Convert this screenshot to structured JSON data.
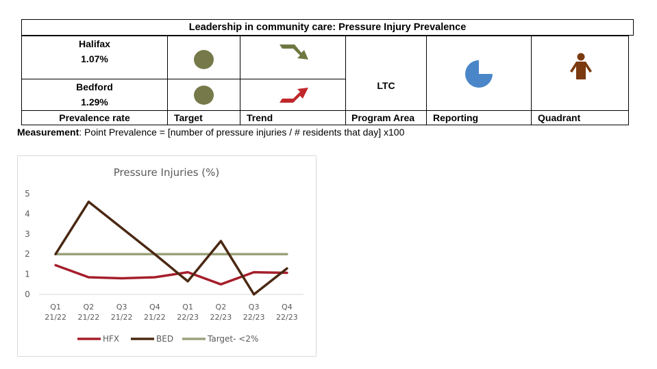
{
  "table": {
    "title": "Leadership in community care: Pressure Injury Prevalence",
    "sites": [
      {
        "name": "Halifax",
        "rate": "1.07%",
        "target_color": "#76794a",
        "trend": "down",
        "trend_color": "#6f7741"
      },
      {
        "name": "Bedford",
        "rate": "1.29%",
        "target_color": "#76794a",
        "trend": "up",
        "trend_color": "#c0282b"
      }
    ],
    "program_area_value": "LTC",
    "reporting_icon": "pie-three-quarter-icon",
    "reporting_color": "#4a86c8",
    "reporting_fraction": 0.75,
    "quadrant_icon": "person-icon",
    "quadrant_color": "#7b3a10",
    "headers": {
      "prevalence": "Prevalence rate",
      "target": "Target",
      "trend": "Trend",
      "program": "Program Area",
      "reporting": "Reporting",
      "quadrant": "Quadrant"
    }
  },
  "measurement": {
    "label": "Measurement",
    "text": ": Point Prevalence = [number of pressure injuries / # residents that day] x100"
  },
  "chart_data": {
    "type": "line",
    "title": "Pressure Injuries (%)",
    "categories": [
      "Q1 21/22",
      "Q2 21/22",
      "Q3 21/22",
      "Q4 21/22",
      "Q1 22/23",
      "Q2 22/23",
      "Q3 22/23",
      "Q4 22/23"
    ],
    "category_lines": [
      [
        "Q1",
        "21/22"
      ],
      [
        "Q2",
        "21/22"
      ],
      [
        "Q3",
        "21/22"
      ],
      [
        "Q4",
        "21/22"
      ],
      [
        "Q1",
        "22/23"
      ],
      [
        "Q2",
        "22/23"
      ],
      [
        "Q3",
        "22/23"
      ],
      [
        "Q4",
        "22/23"
      ]
    ],
    "yticks": [
      "0",
      "1",
      "2",
      "3",
      "4",
      "5"
    ],
    "ylim": [
      0,
      5
    ],
    "series": [
      {
        "name": "HFX",
        "color": "#a51e2b",
        "values": [
          1.45,
          0.85,
          0.8,
          0.85,
          1.1,
          0.5,
          1.1,
          1.07
        ]
      },
      {
        "name": "BED",
        "color": "#4a2812",
        "values": [
          2.0,
          4.6,
          3.3,
          2.0,
          0.65,
          2.65,
          0.0,
          1.29
        ]
      },
      {
        "name": "Target- <2%",
        "color": "#9aa27a",
        "values": [
          2,
          2,
          2,
          2,
          2,
          2,
          2,
          2
        ]
      }
    ],
    "legend_position": "bottom",
    "grid": false
  }
}
